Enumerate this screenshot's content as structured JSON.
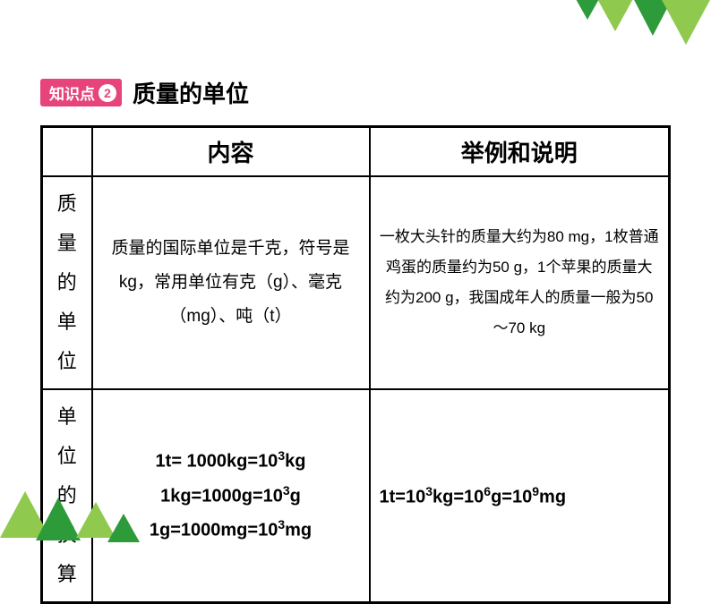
{
  "decorations": {
    "triangle_colors": [
      "#2d9b3a",
      "#8fc94d",
      "#2d9b3a",
      "#8fc94d"
    ]
  },
  "header": {
    "badge_text": "知识点",
    "badge_number": "2",
    "badge_bg_color": "#e6447a",
    "badge_text_color": "#ffffff",
    "section_title": "质量的单位",
    "title_fontsize": 26
  },
  "table": {
    "border_color": "#000000",
    "columns": {
      "content_header": "内容",
      "example_header": "举例和说明"
    },
    "rows": [
      {
        "label": "质量的单位",
        "content": "质量的国际单位是千克，符号是kg，常用单位有克（g）、毫克（mg）、吨（t）",
        "example": "一枚大头针的质量大约为80 mg，1枚普通鸡蛋的质量约为50 g，1个苹果的质量大约为200 g，我国成年人的质量一般为50～70 kg"
      },
      {
        "label": "单位的换算",
        "content_lines": [
          "1t= 1000kg=10³kg",
          "1kg=1000g=10³g",
          "1g=1000mg=10³mg"
        ],
        "example": "1t=10³kg=10⁶g=10⁹mg"
      }
    ]
  },
  "styling": {
    "body_bg": "#ffffff",
    "text_color": "#000000",
    "header_fontsize": 26,
    "label_fontsize": 22,
    "content_fontsize": 19,
    "example_fontsize": 17,
    "conversion_fontsize": 20
  }
}
